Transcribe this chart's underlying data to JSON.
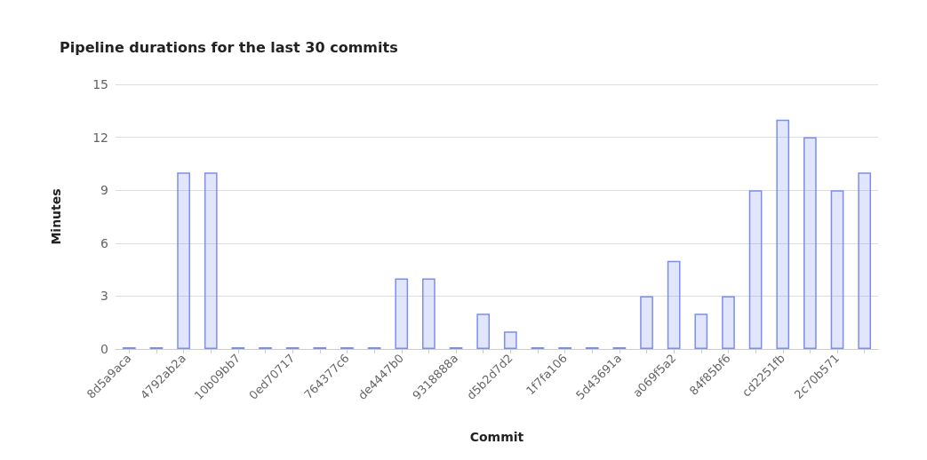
{
  "chart_data": {
    "type": "bar",
    "title": "Pipeline durations for the last 30 commits",
    "xlabel": "Commit",
    "ylabel": "Minutes",
    "categories": [
      "8d5a9aca",
      null,
      "4792ab2a",
      null,
      "10b09bb7",
      null,
      "0ed70717",
      null,
      "764377c6",
      null,
      "de4447b0",
      null,
      "9318888a",
      null,
      "d5b2d7d2",
      null,
      "1f7fa106",
      null,
      "5d43691a",
      null,
      "a069f5a2",
      null,
      "84f85bf6",
      null,
      "cd2251fb",
      null,
      "2c70b571",
      null
    ],
    "values": [
      0,
      0,
      10,
      10,
      0,
      0,
      0,
      0,
      0,
      0,
      4,
      4,
      0,
      2,
      1,
      0,
      0,
      0,
      0,
      3,
      5,
      2,
      3,
      9,
      13,
      12,
      9,
      10
    ],
    "color": "#7b8ef0",
    "ylim": [
      0,
      15
    ],
    "yticks": [
      0,
      3,
      6,
      9,
      12,
      15
    ],
    "grid": "y"
  }
}
